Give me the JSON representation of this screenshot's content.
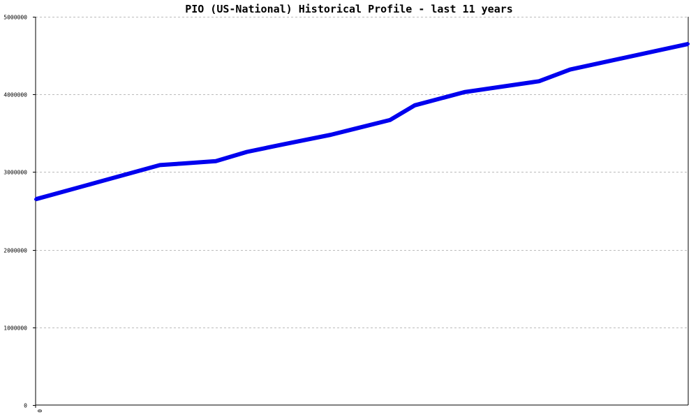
{
  "chart_data": {
    "type": "line",
    "title": "PIO (US-National) Historical Profile - last 11 years",
    "xlabel": "",
    "ylabel": "",
    "ylim": [
      0,
      5000000
    ],
    "y_ticks": [
      "0",
      "1000000",
      "2000000",
      "3000000",
      "4000000",
      "5000000"
    ],
    "y_tick_values": [
      0,
      1000000,
      2000000,
      3000000,
      4000000,
      5000000
    ],
    "x_ticks": [
      "0"
    ],
    "x_tick_values": [
      0
    ],
    "xlim": [
      0,
      21
    ],
    "grid": true,
    "legend": "none",
    "series": [
      {
        "color": "#0000ee",
        "x": [
          0,
          1,
          2,
          3,
          4,
          4.7,
          5.8,
          6.8,
          8,
          9.5,
          11.4,
          12.2,
          13.8,
          16.2,
          17.2,
          21
        ],
        "values": [
          2650000,
          2760000,
          2870000,
          2980000,
          3090000,
          3110000,
          3140000,
          3260000,
          3360000,
          3480000,
          3670000,
          3860000,
          4030000,
          4170000,
          4320000,
          4650000
        ]
      }
    ]
  }
}
